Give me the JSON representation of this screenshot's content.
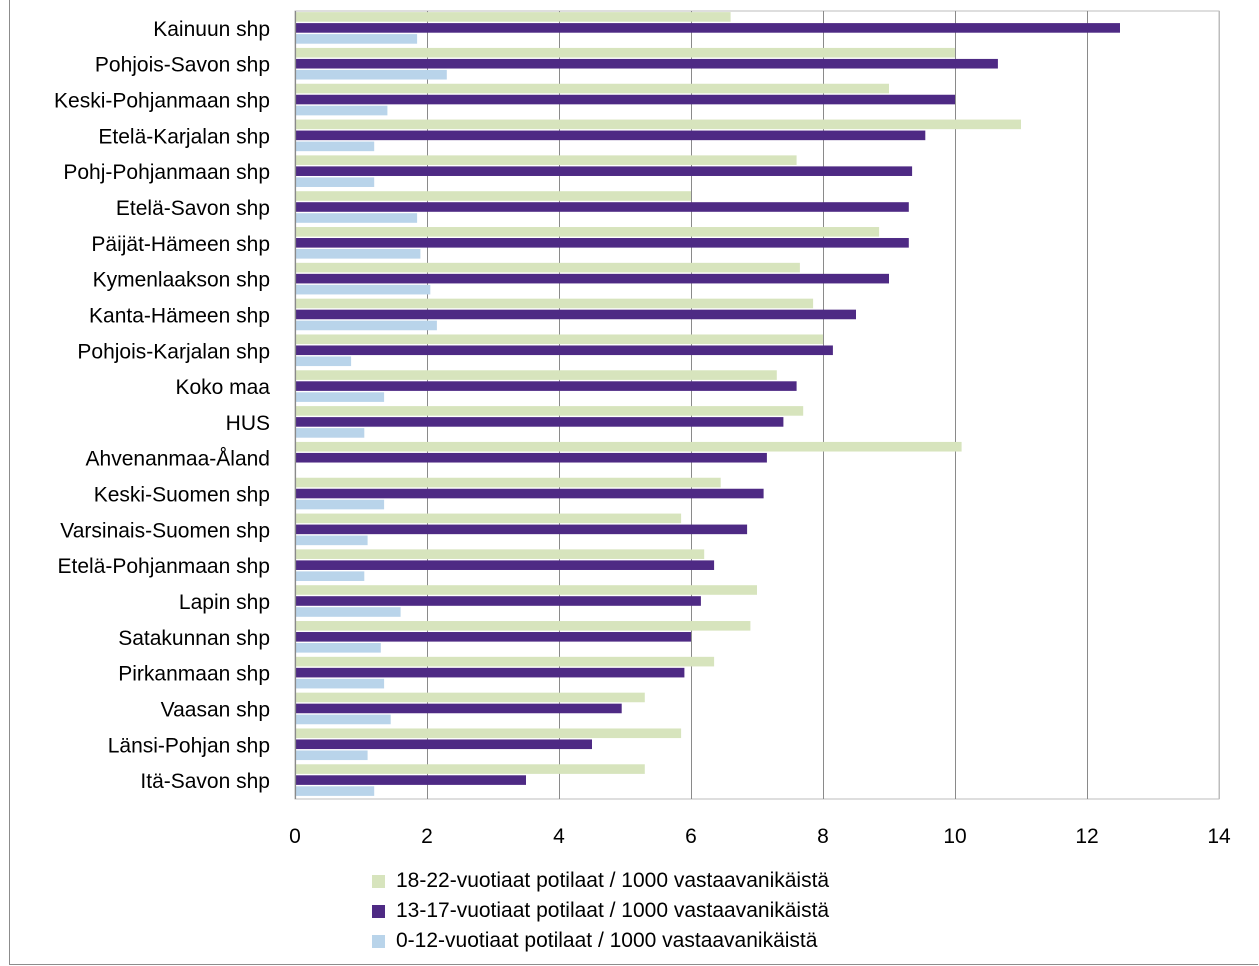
{
  "chart_data": {
    "type": "bar",
    "orientation": "horizontal",
    "categories": [
      "Kainuun shp",
      "Pohjois-Savon shp",
      "Keski-Pohjanmaan shp",
      "Etelä-Karjalan shp",
      "Pohj-Pohjanmaan shp",
      "Etelä-Savon shp",
      "Päijät-Hämeen shp",
      "Kymenlaakson shp",
      "Kanta-Hämeen shp",
      "Pohjois-Karjalan shp",
      "Koko maa",
      "HUS",
      "Ahvenanmaa-Åland",
      "Keski-Suomen shp",
      "Varsinais-Suomen shp",
      "Etelä-Pohjanmaan shp",
      "Lapin shp",
      "Satakunnan shp",
      "Pirkanmaan shp",
      "Vaasan shp",
      "Länsi-Pohjan shp",
      "Itä-Savon shp"
    ],
    "series": [
      {
        "name": "18-22-vuotiaat potilaat / 1000 vastaavanikäistä",
        "color": "#d7e4bd",
        "values": [
          6.6,
          10.0,
          9.0,
          11.0,
          7.6,
          6.0,
          8.85,
          7.65,
          7.85,
          8.0,
          7.3,
          7.7,
          10.1,
          6.45,
          5.85,
          6.2,
          7.0,
          6.9,
          6.35,
          5.3,
          5.85,
          5.3
        ]
      },
      {
        "name": "13-17-vuotiaat potilaat / 1000 vastaavanikäistä",
        "color": "#4e2a84",
        "values": [
          12.5,
          10.65,
          10.0,
          9.55,
          9.35,
          9.3,
          9.3,
          9.0,
          8.5,
          8.15,
          7.6,
          7.4,
          7.15,
          7.1,
          6.85,
          6.35,
          6.15,
          6.0,
          5.9,
          4.95,
          4.5,
          3.5
        ]
      },
      {
        "name": "0-12-vuotiaat potilaat / 1000 vastaavanikäistä",
        "color": "#b9d4ea",
        "values": [
          1.85,
          2.3,
          1.4,
          1.2,
          1.2,
          1.85,
          1.9,
          2.05,
          2.15,
          0.85,
          1.35,
          1.05,
          0,
          1.35,
          1.1,
          1.05,
          1.6,
          1.3,
          1.35,
          1.45,
          1.1,
          1.2
        ]
      }
    ],
    "xlim": [
      0,
      14
    ],
    "xticks": [
      "0",
      "2",
      "4",
      "6",
      "8",
      "10",
      "12",
      "14"
    ],
    "grid": true,
    "legend_position": "bottom"
  }
}
